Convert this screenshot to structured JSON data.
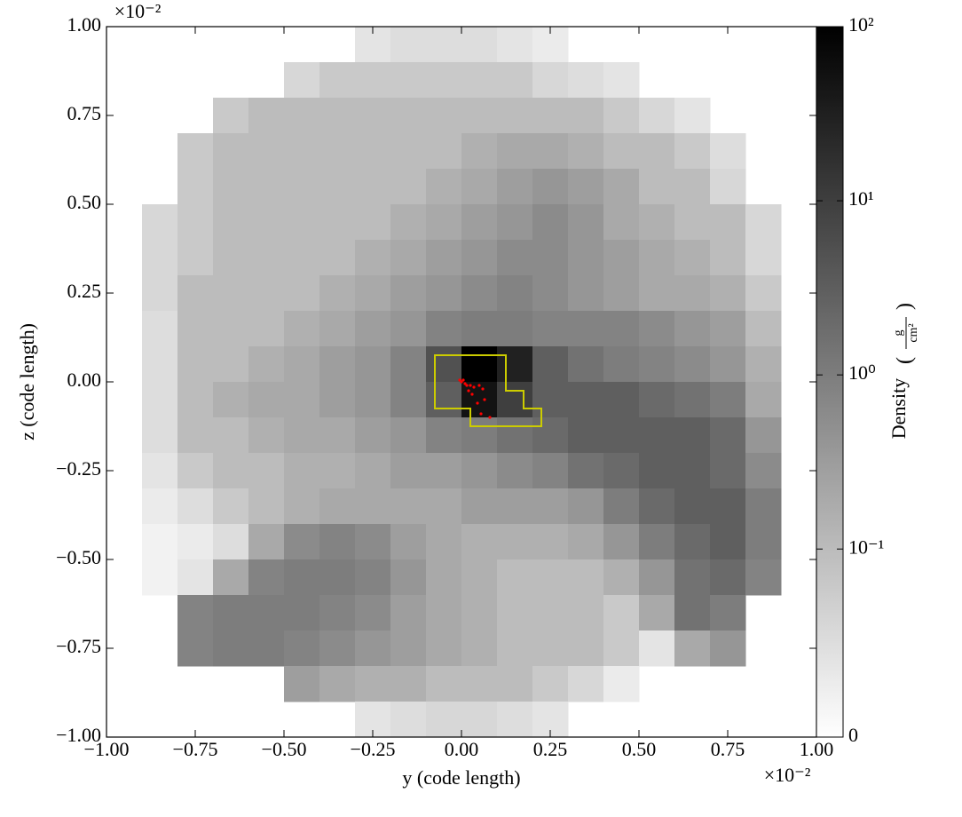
{
  "chart_data": {
    "type": "heatmap",
    "xlabel": "y  (code length)",
    "ylabel": "z  (code length)",
    "x_offset_text": "×10⁻²",
    "y_offset_text": "×10⁻²",
    "xlim": [
      -1,
      1
    ],
    "ylim": [
      -1,
      1
    ],
    "xticks": [
      {
        "value": -1,
        "label": "−1.00"
      },
      {
        "value": -0.75,
        "label": "−0.75"
      },
      {
        "value": -0.5,
        "label": "−0.50"
      },
      {
        "value": -0.25,
        "label": "−0.25"
      },
      {
        "value": 0,
        "label": "0.00"
      },
      {
        "value": 0.25,
        "label": "0.25"
      },
      {
        "value": 0.5,
        "label": "0.50"
      },
      {
        "value": 0.75,
        "label": "0.75"
      },
      {
        "value": 1,
        "label": "1.00"
      }
    ],
    "yticks": [
      {
        "value": -1,
        "label": "−1.00"
      },
      {
        "value": -0.75,
        "label": "−0.75"
      },
      {
        "value": -0.5,
        "label": "−0.50"
      },
      {
        "value": -0.25,
        "label": "−0.25"
      },
      {
        "value": 0,
        "label": "0.00"
      },
      {
        "value": 0.25,
        "label": "0.25"
      },
      {
        "value": 0.5,
        "label": "0.50"
      },
      {
        "value": 0.75,
        "label": "0.75"
      },
      {
        "value": 1,
        "label": "1.00"
      }
    ],
    "z": [
      [
        null,
        null,
        null,
        null,
        null,
        null,
        null,
        0.04,
        0.05,
        0.05,
        0.05,
        0.04,
        0.03,
        null,
        null,
        null,
        null,
        null,
        null,
        null
      ],
      [
        null,
        null,
        null,
        null,
        null,
        0.06,
        0.08,
        0.08,
        0.08,
        0.08,
        0.08,
        0.08,
        0.06,
        0.05,
        0.04,
        null,
        null,
        null,
        null,
        null
      ],
      [
        null,
        null,
        null,
        0.08,
        0.1,
        0.1,
        0.1,
        0.1,
        0.1,
        0.1,
        0.1,
        0.1,
        0.1,
        0.1,
        0.08,
        0.06,
        0.04,
        null,
        null,
        null
      ],
      [
        null,
        null,
        0.08,
        0.1,
        0.1,
        0.1,
        0.1,
        0.1,
        0.1,
        0.1,
        0.15,
        0.2,
        0.2,
        0.15,
        0.1,
        0.1,
        0.08,
        0.05,
        null,
        null
      ],
      [
        null,
        null,
        0.08,
        0.1,
        0.1,
        0.1,
        0.1,
        0.1,
        0.1,
        0.15,
        0.2,
        0.3,
        0.4,
        0.3,
        0.2,
        0.1,
        0.1,
        0.06,
        null,
        null
      ],
      [
        null,
        0.06,
        0.08,
        0.1,
        0.1,
        0.1,
        0.1,
        0.1,
        0.15,
        0.2,
        0.3,
        0.4,
        0.6,
        0.4,
        0.2,
        0.15,
        0.1,
        0.1,
        0.06,
        null
      ],
      [
        null,
        0.06,
        0.08,
        0.1,
        0.1,
        0.1,
        0.1,
        0.15,
        0.2,
        0.3,
        0.4,
        0.6,
        0.6,
        0.4,
        0.3,
        0.2,
        0.15,
        0.1,
        0.06,
        null
      ],
      [
        null,
        0.06,
        0.1,
        0.1,
        0.1,
        0.1,
        0.15,
        0.2,
        0.3,
        0.4,
        0.6,
        0.8,
        0.6,
        0.4,
        0.3,
        0.2,
        0.2,
        0.15,
        0.08,
        null
      ],
      [
        null,
        0.05,
        0.1,
        0.1,
        0.1,
        0.15,
        0.2,
        0.3,
        0.4,
        0.8,
        1,
        1,
        0.8,
        0.8,
        0.8,
        0.6,
        0.4,
        0.3,
        0.1,
        null
      ],
      [
        null,
        0.05,
        0.1,
        0.1,
        0.15,
        0.2,
        0.3,
        0.4,
        0.8,
        5,
        100,
        30,
        3,
        1.5,
        1,
        0.8,
        0.6,
        0.4,
        0.15,
        null
      ],
      [
        null,
        0.05,
        0.1,
        0.15,
        0.2,
        0.2,
        0.3,
        0.4,
        0.8,
        3,
        50,
        10,
        3,
        3,
        3,
        2,
        1.5,
        1,
        0.2,
        null
      ],
      [
        null,
        0.05,
        0.1,
        0.1,
        0.15,
        0.2,
        0.2,
        0.3,
        0.4,
        0.8,
        1,
        1.5,
        2,
        3,
        3,
        3,
        3,
        2,
        0.4,
        null
      ],
      [
        null,
        0.04,
        0.08,
        0.1,
        0.1,
        0.15,
        0.15,
        0.2,
        0.3,
        0.3,
        0.4,
        0.6,
        0.8,
        1.5,
        2,
        3,
        3,
        2,
        0.6,
        null
      ],
      [
        null,
        0.03,
        0.05,
        0.08,
        0.1,
        0.15,
        0.2,
        0.2,
        0.2,
        0.2,
        0.3,
        0.3,
        0.3,
        0.4,
        1,
        2,
        3,
        3,
        1,
        null
      ],
      [
        null,
        0.02,
        0.03,
        0.05,
        0.2,
        0.6,
        0.8,
        0.6,
        0.3,
        0.2,
        0.15,
        0.15,
        0.15,
        0.2,
        0.4,
        1,
        2,
        3,
        1,
        null
      ],
      [
        null,
        0.02,
        0.04,
        0.2,
        0.8,
        1,
        1,
        0.8,
        0.4,
        0.2,
        0.15,
        0.1,
        0.1,
        0.1,
        0.15,
        0.4,
        1.5,
        2,
        0.8,
        null
      ],
      [
        null,
        null,
        0.8,
        1,
        1,
        1,
        0.8,
        0.6,
        0.3,
        0.2,
        0.15,
        0.1,
        0.1,
        0.1,
        0.08,
        0.2,
        1.5,
        1,
        null,
        null
      ],
      [
        null,
        null,
        0.8,
        1,
        1,
        0.8,
        0.6,
        0.4,
        0.3,
        0.2,
        0.15,
        0.1,
        0.1,
        0.1,
        0.08,
        0.04,
        0.2,
        0.4,
        null,
        null
      ],
      [
        null,
        null,
        null,
        null,
        null,
        0.3,
        0.2,
        0.15,
        0.15,
        0.1,
        0.1,
        0.1,
        0.08,
        0.06,
        0.03,
        null,
        null,
        null,
        null,
        null
      ],
      [
        null,
        null,
        null,
        null,
        null,
        null,
        null,
        0.04,
        0.05,
        0.06,
        0.06,
        0.05,
        0.04,
        null,
        null,
        null,
        null,
        null,
        null,
        null
      ]
    ],
    "colorscale": "gray_r",
    "cscale": "symlog",
    "linthresh": 0.1,
    "clim": [
      0,
      100
    ],
    "cticks": [
      0,
      {
        "value": 0.1,
        "label": "10⁻¹"
      },
      {
        "value": 1,
        "label": "10⁰"
      },
      {
        "value": 10,
        "label": "10¹"
      },
      {
        "value": 100,
        "label": "10²"
      }
    ],
    "colorbar_label": "Density",
    "colorbar_unit_num": "g",
    "colorbar_unit_den": "cm²",
    "contour": {
      "color": "#cccc00",
      "x": [
        -0.075,
        0.125,
        0.125,
        0.175,
        0.175,
        0.225,
        0.225,
        0.025,
        0.025,
        -0.075
      ],
      "y": [
        0.075,
        0.075,
        -0.025,
        -0.025,
        -0.075,
        -0.075,
        -0.125,
        -0.125,
        -0.075,
        -0.075
      ]
    },
    "particles": {
      "color": "#ff0000",
      "x": [
        -0.005,
        0.0,
        0.005,
        0.01,
        0.015,
        0.025,
        0.035,
        0.05,
        0.06,
        0.03,
        0.045,
        0.055,
        0.08,
        0.02,
        0.065
      ],
      "y": [
        0.005,
        0.0,
        0.005,
        -0.005,
        -0.01,
        -0.01,
        -0.015,
        -0.01,
        -0.02,
        -0.035,
        -0.06,
        -0.09,
        -0.1,
        -0.025,
        -0.05
      ]
    }
  }
}
